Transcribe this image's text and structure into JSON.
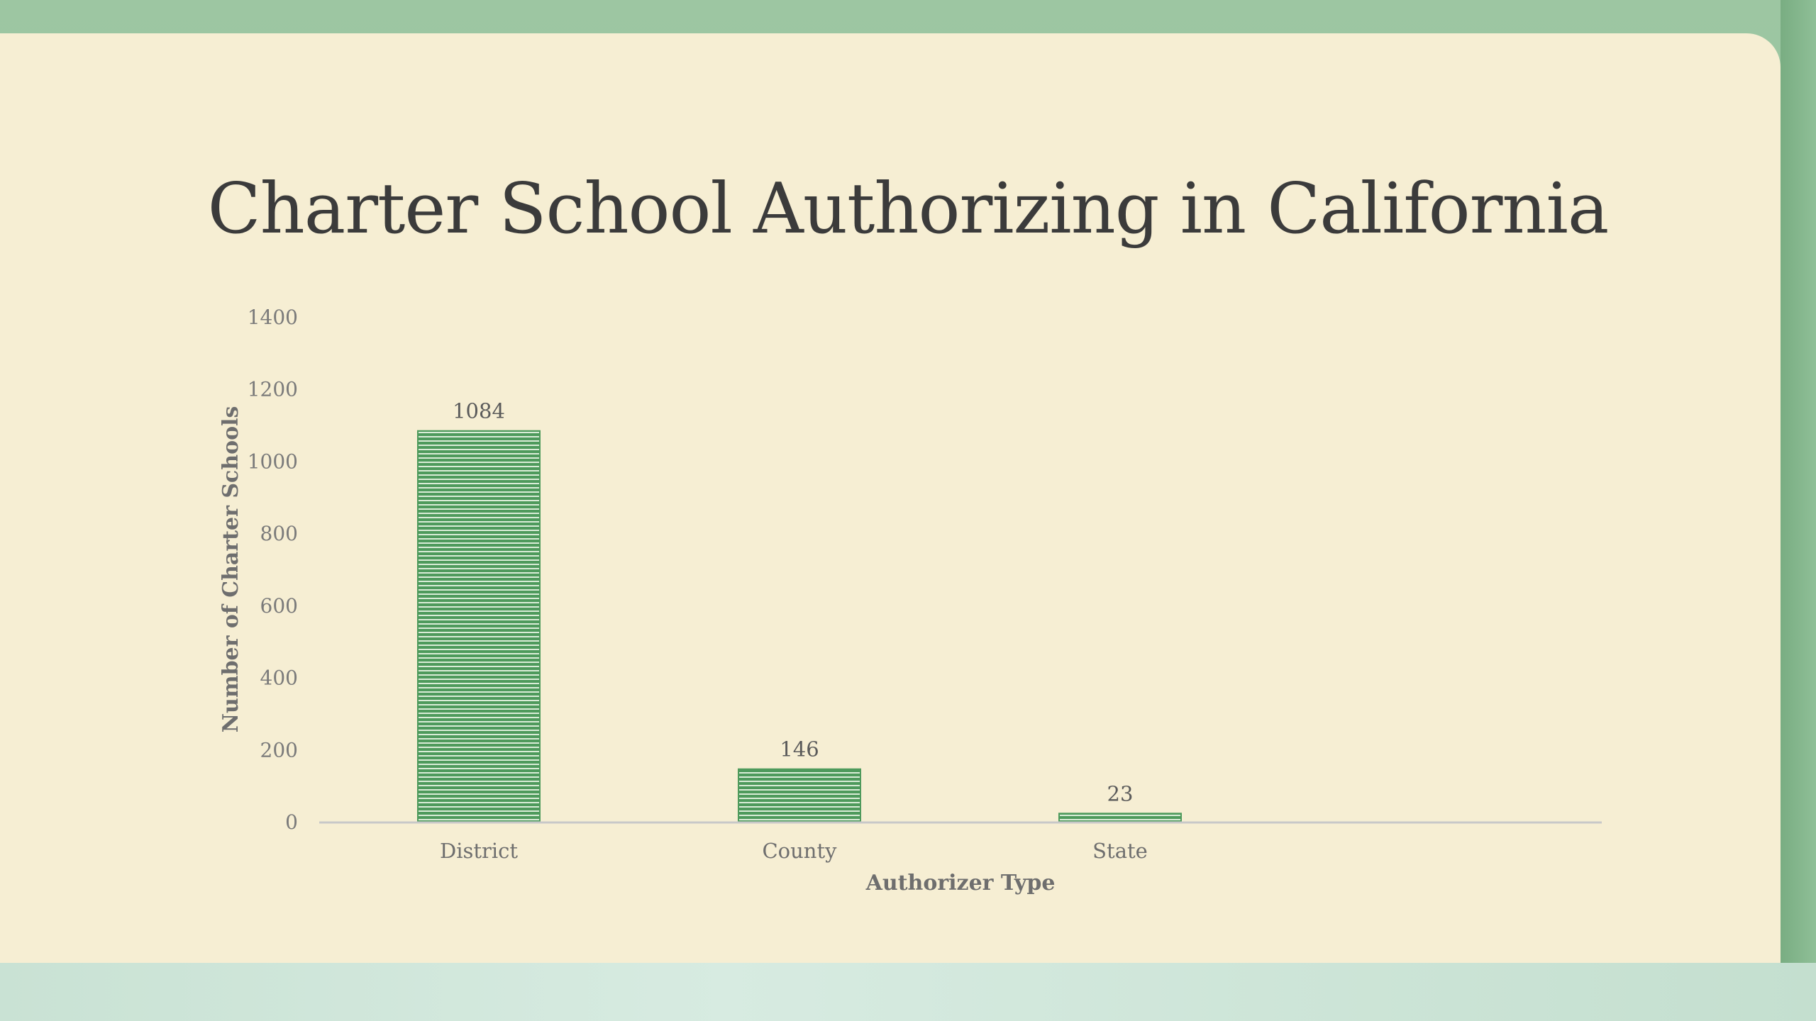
{
  "slide": {
    "title": "Charter School Authorizing in California"
  },
  "colors": {
    "bar_fill": "#4e9a5c",
    "bar_stripe": "#d9ecd7",
    "axis_line": "#c8c8c8",
    "card": "#f6eed3"
  },
  "chart_data": {
    "type": "bar",
    "categories": [
      "District",
      "County",
      "State"
    ],
    "values": [
      1084,
      146,
      23
    ],
    "data_labels": [
      "1084",
      "146",
      "23"
    ],
    "xlabel": "Authorizer Type",
    "ylabel": "Number of Charter Schools",
    "ylim": [
      0,
      1400
    ],
    "yticks": [
      "0",
      "200",
      "400",
      "600",
      "800",
      "1000",
      "1200",
      "1400"
    ],
    "grid": false,
    "legend": "none"
  }
}
